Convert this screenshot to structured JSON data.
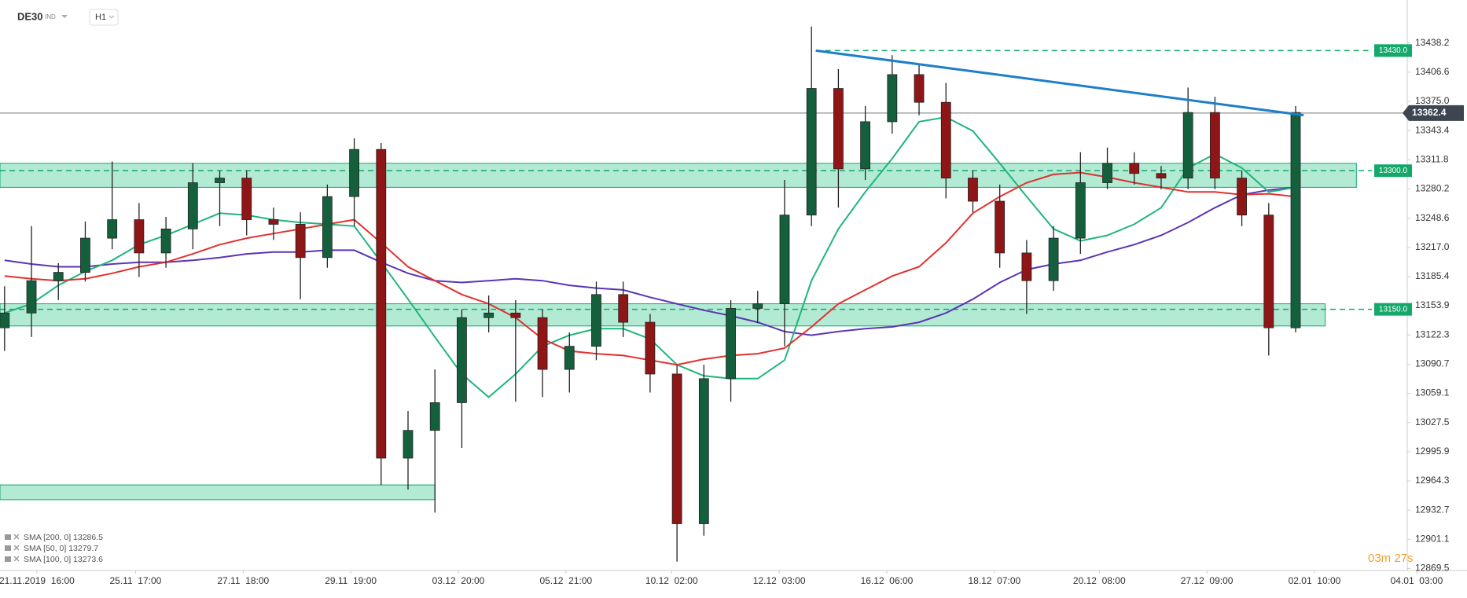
{
  "header": {
    "symbol": "DE30",
    "asset_class": "IND",
    "timeframe": "H1"
  },
  "timer": "03m 27s",
  "chart_data": {
    "type": "candlestick",
    "x": [
      0,
      1,
      2,
      3,
      4,
      5,
      6,
      7,
      8,
      9,
      10,
      11,
      12,
      13,
      14,
      15,
      16,
      17,
      18,
      19,
      20,
      21,
      22,
      23,
      24,
      25,
      26,
      27,
      28,
      29,
      30,
      31,
      32,
      33,
      34,
      35,
      36,
      37,
      38,
      39,
      40,
      41,
      42,
      43,
      44,
      45,
      46,
      47,
      48
    ],
    "open": [
      13130,
      13146,
      13181,
      13190,
      13227,
      13247,
      13211,
      13237,
      13287,
      13292,
      13247,
      13242,
      13206,
      13272,
      13323,
      12989,
      13019,
      13049,
      13141,
      13146,
      13141,
      13085,
      13110,
      13166,
      13136,
      13080,
      12918,
      13075,
      13151,
      13156,
      13252,
      13389,
      13302,
      13353,
      13404,
      13374,
      13292,
      13267,
      13211,
      13181,
      13227,
      13287,
      13308,
      13297,
      13292,
      13363,
      13292,
      13252,
      13130
    ],
    "high": [
      13175,
      13240,
      13200,
      13245,
      13310,
      13265,
      13250,
      13308,
      13300,
      13300,
      13260,
      13255,
      13285,
      13335,
      13330,
      13040,
      13085,
      13150,
      13165,
      13160,
      13150,
      13125,
      13180,
      13180,
      13145,
      13090,
      13090,
      13160,
      13170,
      13290,
      13456,
      13410,
      13370,
      13425,
      13415,
      13395,
      13300,
      13285,
      13225,
      13240,
      13320,
      13325,
      13320,
      13305,
      13390,
      13380,
      13300,
      13265,
      13370
    ],
    "low": [
      13105,
      13120,
      13160,
      13180,
      13215,
      13185,
      13195,
      13215,
      13240,
      13230,
      13225,
      13161,
      13195,
      13240,
      12960,
      12955,
      12930,
      13000,
      13125,
      13050,
      13055,
      13060,
      13095,
      13120,
      13060,
      12877,
      12905,
      13050,
      13135,
      13110,
      13240,
      13260,
      13290,
      13340,
      13360,
      13270,
      13255,
      13195,
      13145,
      13170,
      13210,
      13280,
      13285,
      13280,
      13280,
      13280,
      13240,
      13100,
      13125
    ],
    "close": [
      13146,
      13181,
      13190,
      13227,
      13247,
      13211,
      13237,
      13287,
      13292,
      13247,
      13242,
      13206,
      13272,
      13323,
      12989,
      13019,
      13049,
      13141,
      13146,
      13141,
      13085,
      13110,
      13166,
      13136,
      13080,
      12918,
      13075,
      13151,
      13156,
      13252,
      13389,
      13302,
      13353,
      13404,
      13374,
      13292,
      13267,
      13211,
      13181,
      13227,
      13287,
      13308,
      13297,
      13292,
      13363,
      13292,
      13252,
      13130,
      13363
    ],
    "up_color": "#15603c",
    "down_color": "#8e1616",
    "series": [
      {
        "name": "SMA [200, 0] 13286.5",
        "color": "#5b35b5",
        "values": [
          13203,
          13199,
          13196,
          13196,
          13199,
          13201,
          13201,
          13203,
          13206,
          13210,
          13212,
          13212,
          13214,
          13214,
          13201,
          13189,
          13181,
          13179,
          13181,
          13183,
          13181,
          13176,
          13173,
          13171,
          13163,
          13156,
          13149,
          13143,
          13136,
          13126,
          13122,
          13126,
          13129,
          13131,
          13136,
          13146,
          13161,
          13179,
          13193,
          13199,
          13203,
          13212,
          13220,
          13230,
          13244,
          13260,
          13274,
          13279,
          13282
        ]
      },
      {
        "name": "SMA [50, 0] 13279.7",
        "color": "#1fb57a",
        "values": [
          13146,
          13156,
          13176,
          13191,
          13203,
          13220,
          13230,
          13242,
          13254,
          13252,
          13247,
          13244,
          13242,
          13240,
          13201,
          13161,
          13120,
          13080,
          13055,
          13080,
          13110,
          13122,
          13129,
          13129,
          13118,
          13090,
          13078,
          13075,
          13075,
          13095,
          13181,
          13237,
          13277,
          13313,
          13353,
          13358,
          13343,
          13308,
          13272,
          13237,
          13224,
          13230,
          13242,
          13260,
          13303,
          13318,
          13303,
          13277,
          13282
        ]
      },
      {
        "name": "SMA [100, 0] 13273.6",
        "color": "#e0322f",
        "values": [
          13186,
          13183,
          13181,
          13183,
          13189,
          13196,
          13201,
          13210,
          13220,
          13227,
          13232,
          13237,
          13242,
          13247,
          13222,
          13196,
          13181,
          13166,
          13156,
          13141,
          13118,
          13105,
          13102,
          13100,
          13095,
          13090,
          13096,
          13100,
          13102,
          13108,
          13131,
          13156,
          13171,
          13186,
          13196,
          13222,
          13254,
          13272,
          13287,
          13296,
          13298,
          13293,
          13287,
          13282,
          13277,
          13277,
          13274,
          13275,
          13272
        ]
      }
    ],
    "xlim": [
      -0.17,
      52.15
    ],
    "ylim": [
      12867.4,
      13484.7
    ],
    "yticks": [
      13438.2,
      13406.6,
      {
        "value": 13375.0,
        "label": "13375.0"
      },
      13343.4,
      13311.8,
      13280.2,
      13248.6,
      {
        "value": 13217.0,
        "label": "13217.0"
      },
      13185.4,
      13153.9,
      13122.3,
      13090.7,
      13059.1,
      13027.5,
      12995.9,
      12964.3,
      12932.7,
      12901.1,
      12869.5
    ],
    "xticks": [
      {
        "value": 1.2,
        "label": "21.11.2019  16:00"
      },
      {
        "value": 4.87,
        "label": "25.11  17:00"
      },
      {
        "value": 8.87,
        "label": "27.11  18:00"
      },
      {
        "value": 12.87,
        "label": "29.11  19:00"
      },
      {
        "value": 16.87,
        "label": "03.12  20:00"
      },
      {
        "value": 20.87,
        "label": "05.12  21:00"
      },
      {
        "value": 24.8,
        "label": "10.12  02:00"
      },
      {
        "value": 28.8,
        "label": "12.12  03:00"
      },
      {
        "value": 32.8,
        "label": "16.12  06:00"
      },
      {
        "value": 36.8,
        "label": "18.12  07:00"
      },
      {
        "value": 40.7,
        "label": "20.12  08:00"
      },
      {
        "value": 44.7,
        "label": "27.12  09:00"
      },
      {
        "value": 48.7,
        "label": "02.01  10:00"
      },
      {
        "value": 52.5,
        "label": "04.01  03:00"
      }
    ],
    "zones": [
      {
        "x": [
          -0.17,
          50.26
        ],
        "y": [
          13282,
          13308
        ]
      },
      {
        "x": [
          -0.17,
          49.1
        ],
        "y": [
          13132,
          13156
        ]
      },
      {
        "x": [
          -0.17,
          16.0
        ],
        "y": [
          12944,
          12960
        ]
      }
    ],
    "zone_color": "#7fdcb5",
    "levels": [
      {
        "value": 13430,
        "label": "13430.0",
        "start": 30.16
      },
      {
        "value": 13300,
        "label": "13300.0",
        "start": -0.17
      },
      {
        "value": 13150,
        "label": "13150.0",
        "start": -0.17
      }
    ],
    "level_color": "#14a86b",
    "trendline": {
      "x": [
        30.16,
        48.3
      ],
      "y": [
        13430,
        13360
      ],
      "color": "#1e7fc8"
    },
    "current_price": 13362.4
  }
}
